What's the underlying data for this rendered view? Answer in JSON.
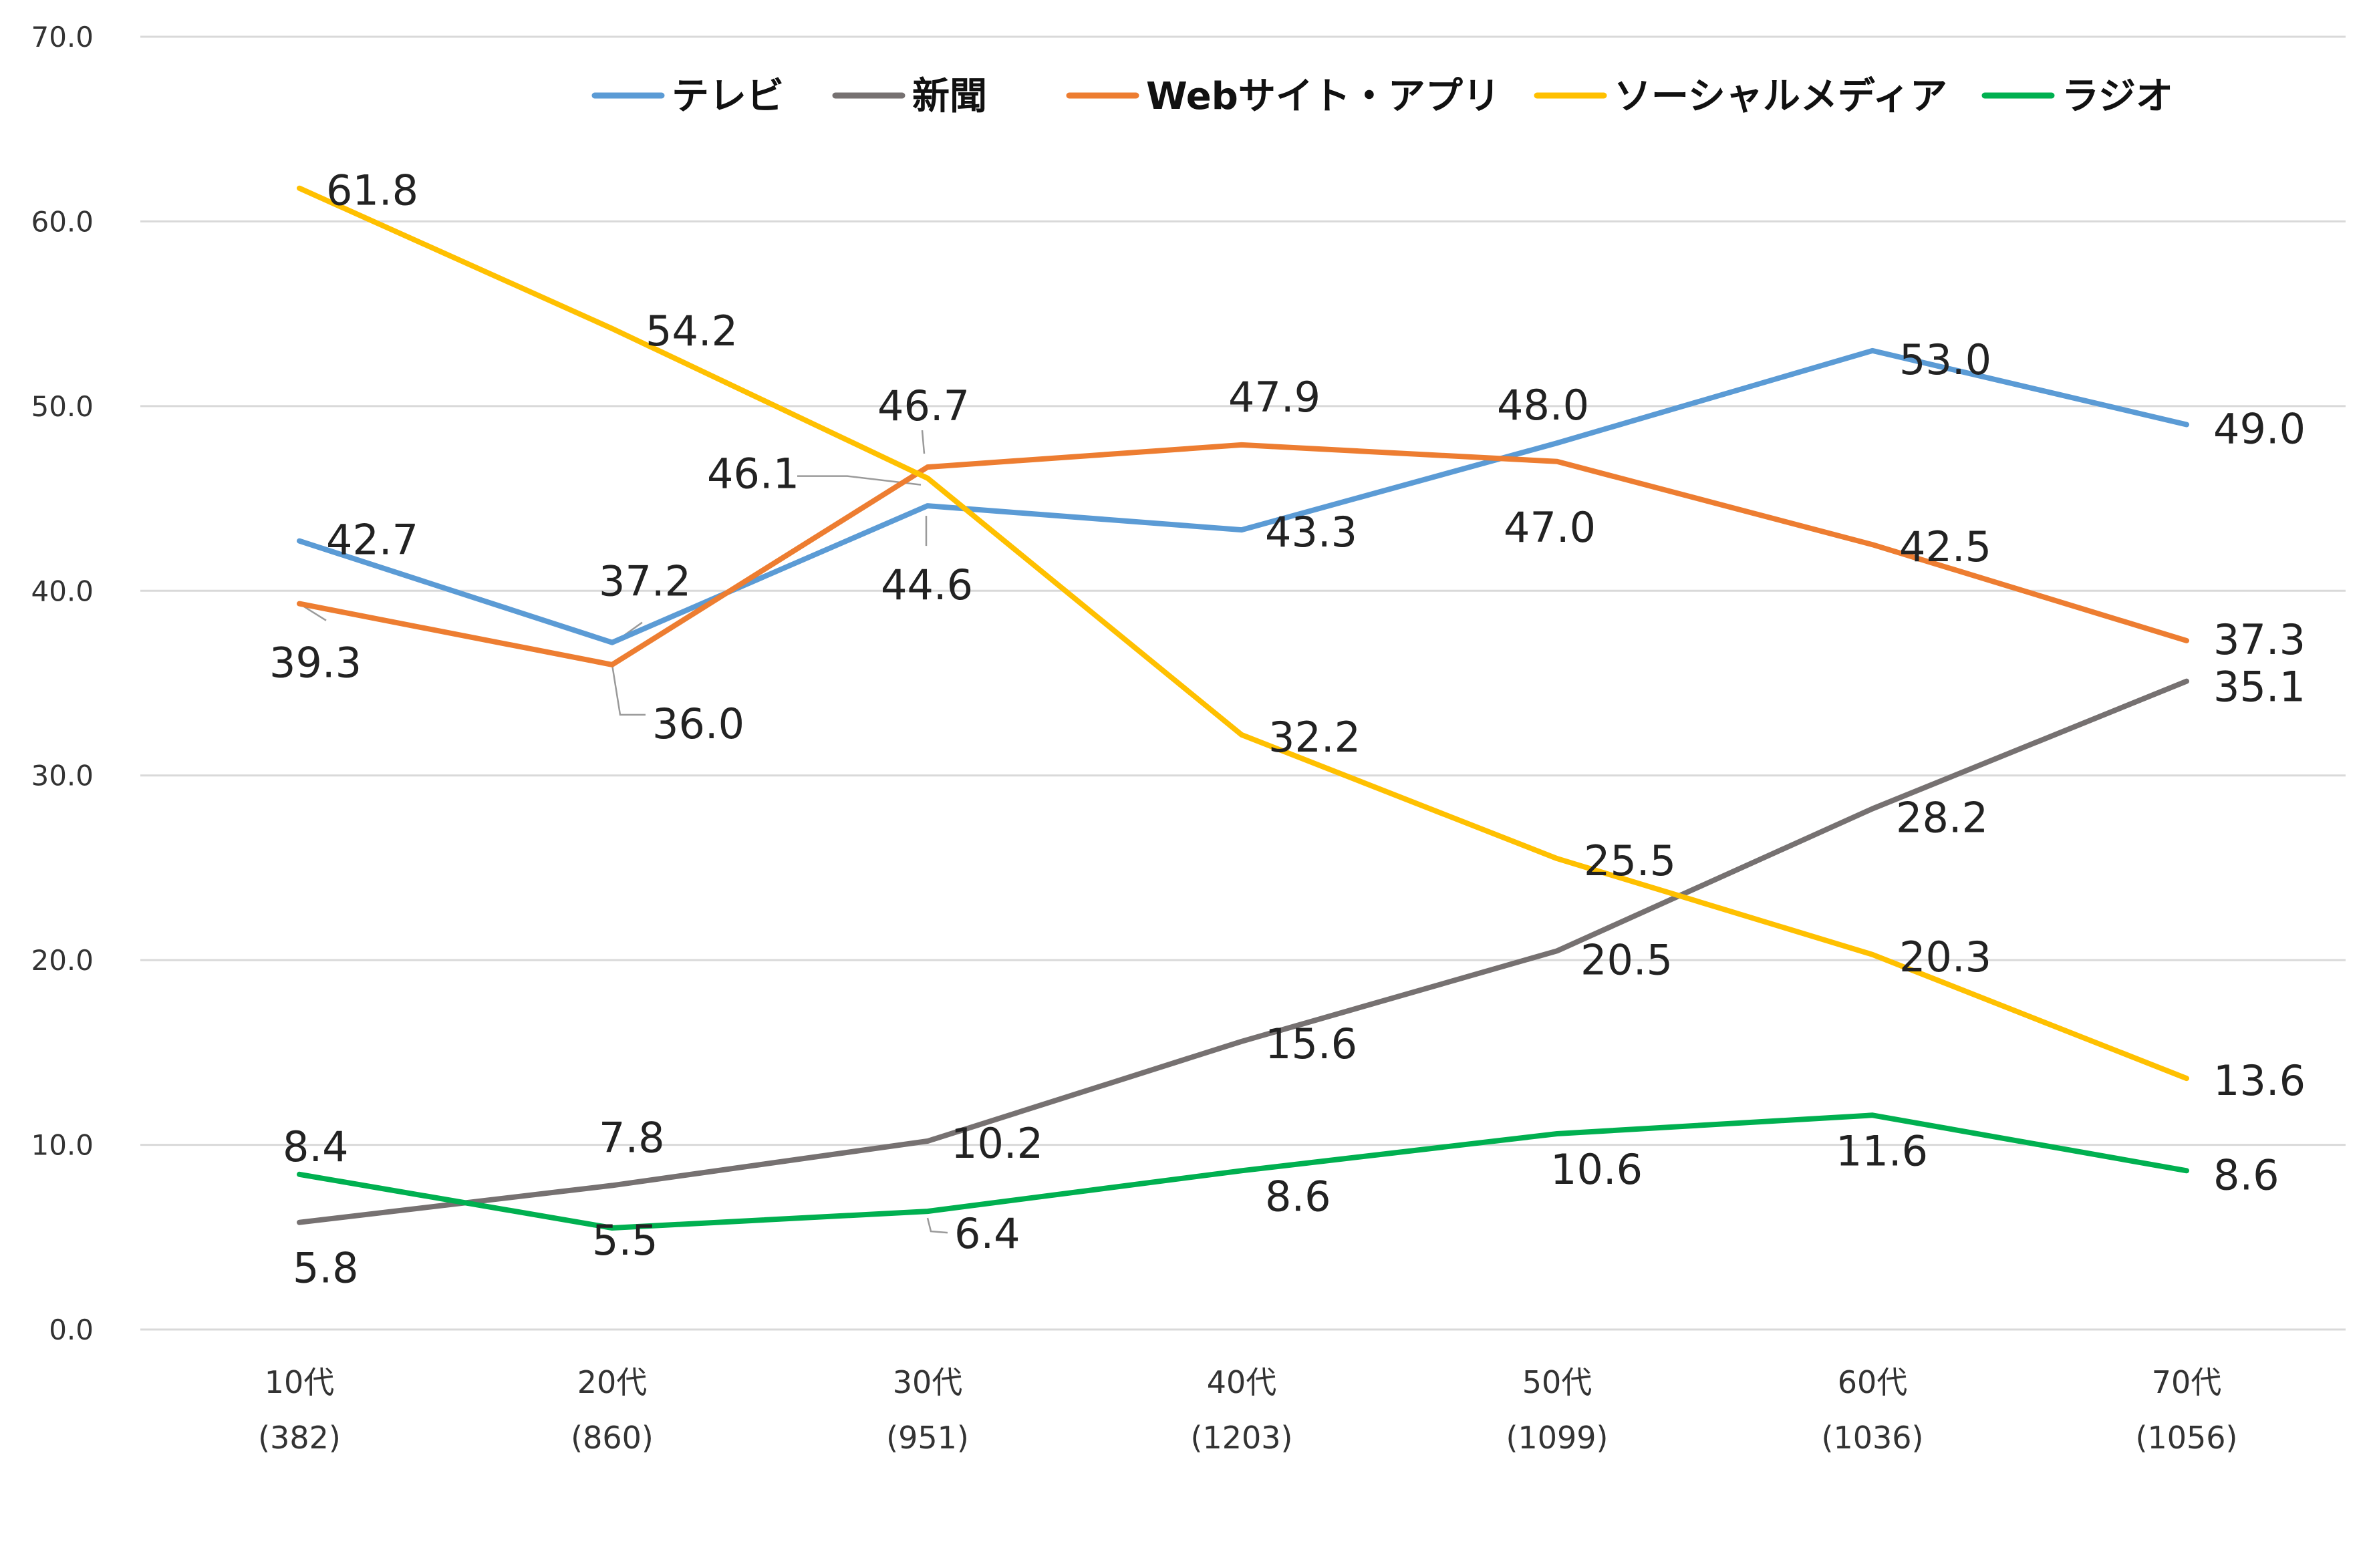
{
  "chart_data": {
    "type": "line",
    "categories": [
      [
        "10代",
        "(382)"
      ],
      [
        "20代",
        "(860)"
      ],
      [
        "30代",
        "(951)"
      ],
      [
        "40代",
        "(1203)"
      ],
      [
        "50代",
        "(1099)"
      ],
      [
        "60代",
        "(1036)"
      ],
      [
        "70代",
        "(1056)"
      ]
    ],
    "ylim": [
      0,
      70
    ],
    "yticks": [
      "0.0",
      "10.0",
      "20.0",
      "30.0",
      "40.0",
      "50.0",
      "60.0",
      "70.0"
    ],
    "ytick_values": [
      0,
      10,
      20,
      30,
      40,
      50,
      60,
      70
    ],
    "grid": true,
    "legend_position": "top",
    "series": [
      {
        "name": "テレビ",
        "color": "#5B9BD5",
        "values": [
          42.7,
          37.2,
          44.6,
          43.3,
          48.0,
          53.0,
          49.0
        ],
        "labels": [
          "42.7",
          "37.2",
          "44.6",
          "43.3",
          "48.0",
          "53.0",
          "49.0"
        ]
      },
      {
        "name": "新聞",
        "color": "#767171",
        "values": [
          5.8,
          7.8,
          10.2,
          15.6,
          20.5,
          28.2,
          35.1
        ],
        "labels": [
          "5.8",
          "7.8",
          "10.2",
          "15.6",
          "20.5",
          "28.2",
          "35.1"
        ]
      },
      {
        "name": "Webサイト・アプリ",
        "color": "#ED7D31",
        "values": [
          39.3,
          36.0,
          46.7,
          47.9,
          47.0,
          42.5,
          37.3
        ],
        "labels": [
          "39.3",
          "36.0",
          "46.7",
          "47.9",
          "47.0",
          "42.5",
          "37.3"
        ]
      },
      {
        "name": "ソーシャルメディア",
        "color": "#FFC000",
        "values": [
          61.8,
          54.2,
          46.1,
          32.2,
          25.5,
          20.3,
          13.6
        ],
        "labels": [
          "61.8",
          "54.2",
          "46.1",
          "32.2",
          "25.5",
          "20.3",
          "13.6"
        ]
      },
      {
        "name": "ラジオ",
        "color": "#00B050",
        "values": [
          8.4,
          5.5,
          6.4,
          8.6,
          10.6,
          11.6,
          8.6
        ],
        "labels": [
          "8.4",
          "5.5",
          "6.4",
          "8.6",
          "10.6",
          "11.6",
          "8.6"
        ]
      }
    ]
  }
}
